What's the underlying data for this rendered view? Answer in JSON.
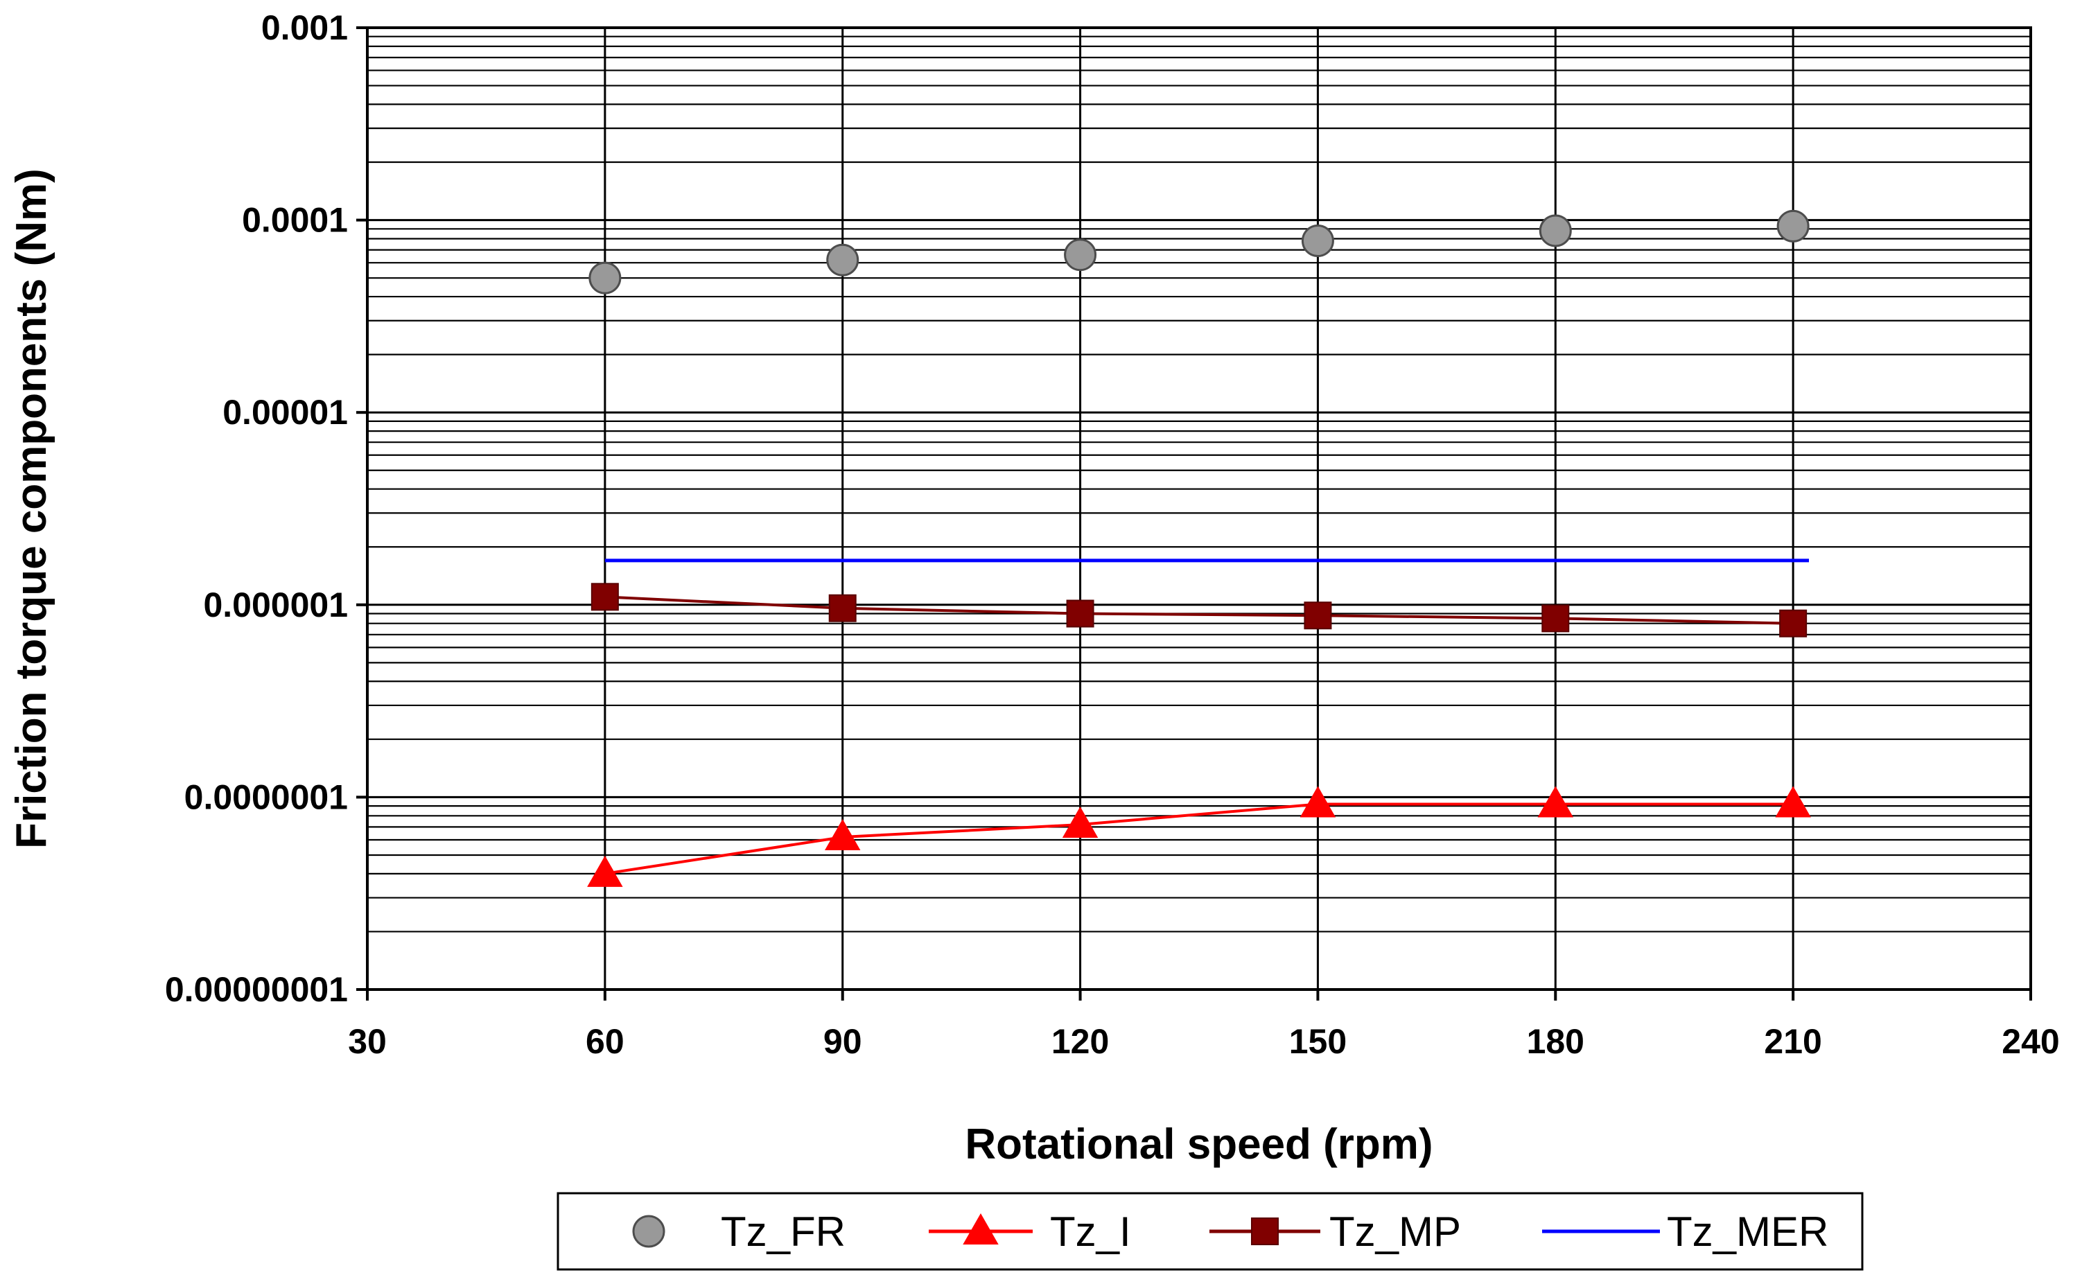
{
  "chart_data": {
    "type": "line",
    "title": "",
    "xlabel": "Rotational speed (rpm)",
    "ylabel": "Friction torque components (Nm)",
    "xlim": [
      30,
      240
    ],
    "x_ticks": [
      30,
      60,
      90,
      120,
      150,
      180,
      210,
      240
    ],
    "x_tick_labels": [
      "30",
      "60",
      "90",
      "120",
      "150",
      "180",
      "210",
      "240"
    ],
    "y_scale": "log",
    "ylim": [
      1e-08,
      0.001
    ],
    "y_ticks": [
      1e-08,
      1e-07,
      1e-06,
      1e-05,
      0.0001,
      0.001
    ],
    "y_tick_labels": [
      "0.00000001",
      "0.0000001",
      "0.000001",
      "0.00001",
      "0.0001",
      "0.001"
    ],
    "grid": true,
    "legend_position": "bottom",
    "x": [
      60,
      90,
      120,
      150,
      180,
      210
    ],
    "series": [
      {
        "name": "Tz_FR",
        "marker": "circle",
        "line": false,
        "color": "#999999",
        "values": [
          5e-05,
          6.2e-05,
          6.6e-05,
          7.8e-05,
          8.8e-05,
          9.3e-05
        ]
      },
      {
        "name": "Tz_I",
        "marker": "triangle",
        "line": true,
        "color": "#ff0000",
        "values": [
          4e-08,
          6.2e-08,
          7.2e-08,
          9.2e-08,
          9.2e-08,
          9.2e-08
        ]
      },
      {
        "name": "Tz_MP",
        "marker": "square",
        "line": true,
        "color": "#800000",
        "values": [
          1.1e-06,
          9.6e-07,
          9e-07,
          8.8e-07,
          8.5e-07,
          8e-07
        ]
      },
      {
        "name": "Tz_MER",
        "marker": "none",
        "line": true,
        "color": "#0000ff",
        "values": [
          1.7e-06,
          1.7e-06,
          1.7e-06,
          1.7e-06,
          1.7e-06,
          1.7e-06
        ],
        "x_end": 212
      }
    ]
  }
}
